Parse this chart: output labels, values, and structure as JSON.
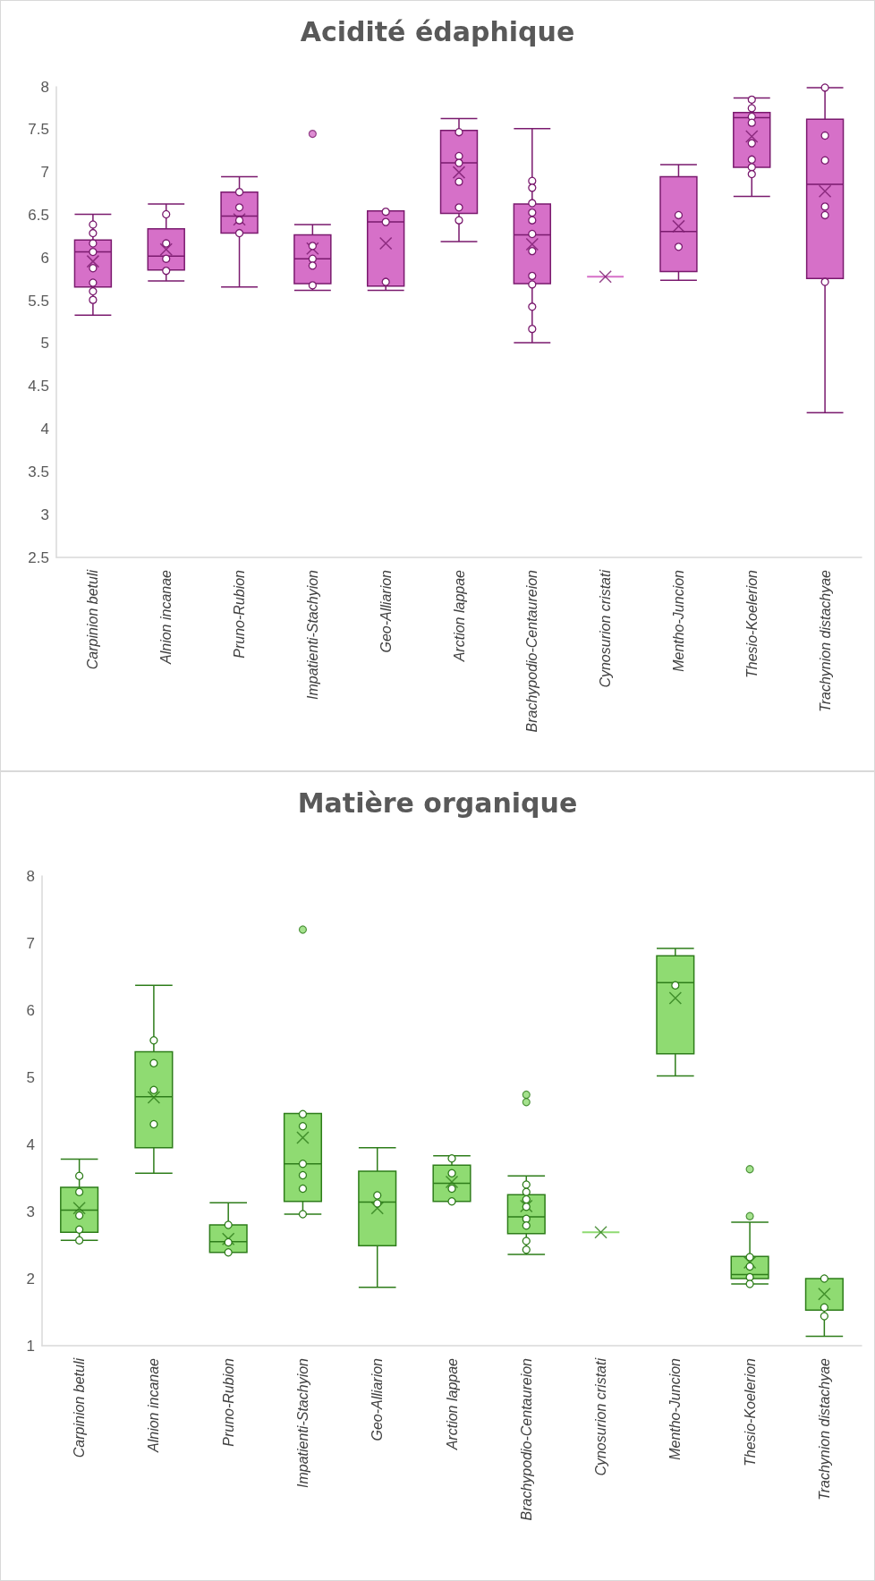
{
  "chart_data": [
    {
      "type": "box",
      "title": "Acidité édaphique",
      "categories": [
        "Carpinion betuli",
        "Alnion incanae",
        "Pruno-Rubion",
        "Impatienti-Stachyion",
        "Geo-Alliarion",
        "Arction lappae",
        "Brachypodio-Centaureion",
        "Cynosurion cristati",
        "Mentho-Juncion",
        "Thesio-Koelerion",
        "Trachynion distachyae"
      ],
      "ylim": [
        2.5,
        8
      ],
      "yticks": [
        2.5,
        3,
        3.5,
        4,
        4.5,
        5,
        5.5,
        6,
        6.5,
        7,
        7.5,
        8
      ],
      "grid": false,
      "series": [
        {
          "color": "#d670c8",
          "boxes": [
            {
              "low": 5.33,
              "q1": 5.66,
              "median": 6.07,
              "q3": 6.21,
              "high": 6.51,
              "mean": 5.96
            },
            {
              "low": 5.73,
              "q1": 5.86,
              "median": 6.02,
              "q3": 6.34,
              "high": 6.63,
              "mean": 6.1
            },
            {
              "low": 5.66,
              "q1": 6.29,
              "median": 6.49,
              "q3": 6.77,
              "high": 6.95,
              "mean": 6.45
            },
            {
              "low": 5.62,
              "q1": 5.7,
              "median": 5.99,
              "q3": 6.27,
              "high": 6.39,
              "mean": 6.11,
              "outliers": [
                7.45
              ]
            },
            {
              "low": 5.62,
              "q1": 5.67,
              "median": 6.42,
              "q3": 6.55,
              "high": 6.55,
              "mean": 6.17
            },
            {
              "low": 6.19,
              "q1": 6.52,
              "median": 7.11,
              "q3": 7.49,
              "high": 7.63,
              "mean": 7.0
            },
            {
              "low": 5.01,
              "q1": 5.7,
              "median": 6.27,
              "q3": 6.63,
              "high": 7.51,
              "mean": 6.16
            },
            {
              "low": 5.78,
              "q1": 5.78,
              "median": 5.78,
              "q3": 5.78,
              "high": 5.78,
              "mean": 5.78
            },
            {
              "low": 5.74,
              "q1": 5.84,
              "median": 6.31,
              "q3": 6.95,
              "high": 7.09,
              "mean": 6.37
            },
            {
              "low": 6.72,
              "q1": 7.06,
              "median": 7.64,
              "q3": 7.7,
              "high": 7.87,
              "mean": 7.42
            },
            {
              "low": 4.19,
              "q1": 5.76,
              "median": 6.86,
              "q3": 7.62,
              "high": 7.99,
              "mean": 6.78
            }
          ]
        },
        {
          "type": "scatter",
          "color": "#7a1a6e",
          "marker": "circle",
          "x": [
            "Carpinion betuli",
            "Carpinion betuli",
            "Carpinion betuli",
            "Carpinion betuli",
            "Carpinion betuli",
            "Carpinion betuli",
            "Carpinion betuli",
            "Carpinion betuli",
            "Alnion incanae",
            "Alnion incanae",
            "Alnion incanae",
            "Alnion incanae",
            "Pruno-Rubion",
            "Pruno-Rubion",
            "Pruno-Rubion",
            "Pruno-Rubion",
            "Impatienti-Stachyion",
            "Impatienti-Stachyion",
            "Impatienti-Stachyion",
            "Impatienti-Stachyion",
            "Geo-Alliarion",
            "Geo-Alliarion",
            "Geo-Alliarion",
            "Arction lappae",
            "Arction lappae",
            "Arction lappae",
            "Arction lappae",
            "Arction lappae",
            "Arction lappae",
            "Brachypodio-Centaureion",
            "Brachypodio-Centaureion",
            "Brachypodio-Centaureion",
            "Brachypodio-Centaureion",
            "Brachypodio-Centaureion",
            "Brachypodio-Centaureion",
            "Brachypodio-Centaureion",
            "Brachypodio-Centaureion",
            "Brachypodio-Centaureion",
            "Brachypodio-Centaureion",
            "Brachypodio-Centaureion",
            "Mentho-Juncion",
            "Mentho-Juncion",
            "Thesio-Koelerion",
            "Thesio-Koelerion",
            "Thesio-Koelerion",
            "Thesio-Koelerion",
            "Thesio-Koelerion",
            "Thesio-Koelerion",
            "Thesio-Koelerion",
            "Thesio-Koelerion",
            "Trachynion distachyae",
            "Trachynion distachyae",
            "Trachynion distachyae",
            "Trachynion distachyae",
            "Trachynion distachyae",
            "Trachynion distachyae"
          ],
          "values": [
            6.39,
            6.29,
            6.17,
            6.07,
            5.88,
            5.71,
            5.61,
            5.51,
            6.51,
            6.17,
            5.99,
            5.85,
            6.77,
            6.59,
            6.44,
            6.29,
            6.14,
            5.99,
            5.91,
            5.68,
            6.54,
            6.42,
            5.72,
            7.47,
            7.19,
            7.11,
            6.89,
            6.59,
            6.44,
            6.9,
            6.82,
            6.64,
            6.53,
            6.44,
            6.28,
            6.08,
            5.79,
            5.69,
            5.43,
            5.17,
            6.5,
            6.13,
            7.85,
            7.75,
            7.65,
            7.58,
            7.34,
            7.15,
            7.06,
            6.98,
            7.99,
            7.43,
            7.14,
            6.6,
            6.5,
            5.72
          ]
        }
      ]
    },
    {
      "type": "box",
      "title": "Matière organique",
      "categories": [
        "Carpinion betuli",
        "Alnion incanae",
        "Pruno-Rubion",
        "Impatienti-Stachyion",
        "Geo-Alliarion",
        "Arction lappae",
        "Brachypodio-Centaureion",
        "Cynosurion cristati",
        "Mentho-Juncion",
        "Thesio-Koelerion",
        "Trachynion distachyae"
      ],
      "ylim": [
        1,
        8
      ],
      "yticks": [
        1,
        2,
        3,
        4,
        5,
        6,
        7,
        8
      ],
      "grid": false,
      "series": [
        {
          "color": "#8fdb72",
          "boxes": [
            {
              "low": 2.57,
              "q1": 2.69,
              "median": 3.02,
              "q3": 3.36,
              "high": 3.78,
              "mean": 3.05
            },
            {
              "low": 3.57,
              "q1": 3.95,
              "median": 4.71,
              "q3": 5.38,
              "high": 6.37,
              "mean": 4.7
            },
            {
              "low": 2.39,
              "q1": 2.39,
              "median": 2.55,
              "q3": 2.8,
              "high": 3.13,
              "mean": 2.59
            },
            {
              "low": 2.96,
              "q1": 3.15,
              "median": 3.71,
              "q3": 4.46,
              "high": 4.46,
              "mean": 4.1,
              "outliers": [
                7.2
              ]
            },
            {
              "low": 1.87,
              "q1": 2.49,
              "median": 3.14,
              "q3": 3.6,
              "high": 3.95,
              "mean": 3.05
            },
            {
              "low": 3.15,
              "q1": 3.15,
              "median": 3.42,
              "q3": 3.69,
              "high": 3.83,
              "mean": 3.44
            },
            {
              "low": 2.36,
              "q1": 2.67,
              "median": 2.92,
              "q3": 3.25,
              "high": 3.53,
              "mean": 3.08,
              "outliers": [
                4.74,
                4.63
              ]
            },
            {
              "low": 2.69,
              "q1": 2.69,
              "median": 2.69,
              "q3": 2.69,
              "high": 2.69,
              "mean": 2.69
            },
            {
              "low": 5.02,
              "q1": 5.35,
              "median": 6.41,
              "q3": 6.81,
              "high": 6.92,
              "mean": 6.18
            },
            {
              "low": 1.92,
              "q1": 2.0,
              "median": 2.06,
              "q3": 2.33,
              "high": 2.84,
              "mean": 2.24,
              "outliers": [
                3.63,
                2.93
              ]
            },
            {
              "low": 1.14,
              "q1": 1.53,
              "median": 1.53,
              "q3": 2.0,
              "high": 2.0,
              "mean": 1.77
            }
          ]
        },
        {
          "type": "scatter",
          "color": "#2e7d1a",
          "marker": "circle",
          "x": [
            "Carpinion betuli",
            "Carpinion betuli",
            "Carpinion betuli",
            "Carpinion betuli",
            "Carpinion betuli",
            "Alnion incanae",
            "Alnion incanae",
            "Alnion incanae",
            "Alnion incanae",
            "Pruno-Rubion",
            "Pruno-Rubion",
            "Pruno-Rubion",
            "Impatienti-Stachyion",
            "Impatienti-Stachyion",
            "Impatienti-Stachyion",
            "Impatienti-Stachyion",
            "Impatienti-Stachyion",
            "Impatienti-Stachyion",
            "Geo-Alliarion",
            "Geo-Alliarion",
            "Arction lappae",
            "Arction lappae",
            "Arction lappae",
            "Arction lappae",
            "Brachypodio-Centaureion",
            "Brachypodio-Centaureion",
            "Brachypodio-Centaureion",
            "Brachypodio-Centaureion",
            "Brachypodio-Centaureion",
            "Brachypodio-Centaureion",
            "Brachypodio-Centaureion",
            "Brachypodio-Centaureion",
            "Mentho-Juncion",
            "Thesio-Koelerion",
            "Thesio-Koelerion",
            "Thesio-Koelerion",
            "Thesio-Koelerion",
            "Trachynion distachyae",
            "Trachynion distachyae",
            "Trachynion distachyae"
          ],
          "values": [
            3.53,
            3.29,
            2.94,
            2.73,
            2.57,
            5.55,
            5.21,
            4.81,
            4.3,
            2.8,
            2.54,
            2.39,
            4.45,
            4.27,
            3.71,
            3.54,
            3.34,
            2.96,
            3.24,
            3.12,
            3.79,
            3.57,
            3.34,
            3.15,
            3.4,
            3.29,
            3.18,
            3.07,
            2.89,
            2.79,
            2.56,
            2.43,
            6.37,
            2.32,
            2.18,
            2.02,
            1.92,
            2.0,
            1.57,
            1.44
          ]
        }
      ]
    }
  ]
}
